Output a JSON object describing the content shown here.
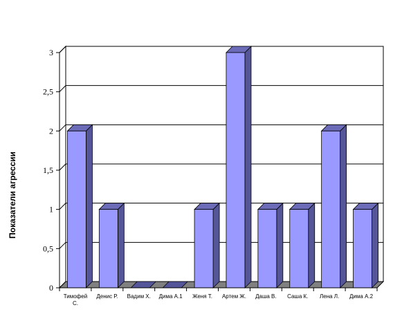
{
  "chart_data": {
    "type": "bar",
    "title": "",
    "xlabel": "",
    "ylabel": "Показатели агрессии",
    "ylim": [
      0,
      3
    ],
    "yticks": [
      "0",
      "0,5",
      "1",
      "1,5",
      "2",
      "2,5",
      "3"
    ],
    "categories": [
      [
        "Тимофей",
        "С."
      ],
      [
        "Денис Р."
      ],
      [
        "Вадим Х."
      ],
      [
        "Дима А.1"
      ],
      [
        "Женя Т."
      ],
      [
        "Артем Ж."
      ],
      [
        "Даша В."
      ],
      [
        "Саша К."
      ],
      [
        "Лена Л."
      ],
      [
        "Дима А.2"
      ]
    ],
    "values": [
      2,
      1,
      0,
      0,
      1,
      3,
      1,
      1,
      2,
      1
    ],
    "grid": true,
    "legend": "none",
    "colors": {
      "bar_front": "#9999ff",
      "bar_side": "#555599",
      "bar_top": "#6b6bb8",
      "floor": "#808080",
      "wall": "#ffffff",
      "grid": "#000000"
    }
  }
}
